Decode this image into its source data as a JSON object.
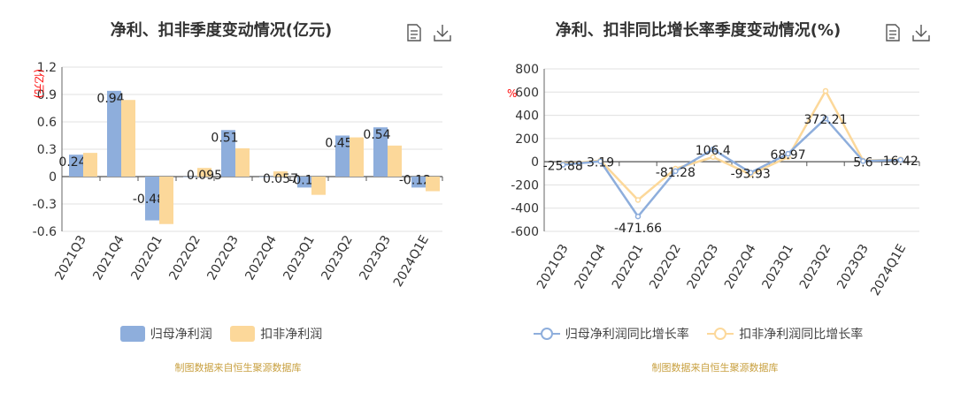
{
  "source_note": "制图数据来自恒生聚源数据库",
  "colors": {
    "series1": "#8eaedc",
    "series2": "#fcd89a",
    "axis": "#666666",
    "grid": "#e0e0e0",
    "unit": "#ff0000"
  },
  "icons": [
    "document-icon",
    "download-icon"
  ],
  "chart_data": [
    {
      "type": "bar",
      "title": "净利、扣非季度变动情况(亿元)",
      "ylabel": "(亿元)",
      "categories": [
        "2021Q3",
        "2021Q4",
        "2022Q1",
        "2022Q2",
        "2022Q3",
        "2022Q4",
        "2023Q1",
        "2023Q2",
        "2023Q3",
        "2024Q1E"
      ],
      "ylim": [
        -0.6,
        1.2
      ],
      "yticks": [
        "1.2",
        "0.9",
        "0.6",
        "0.3",
        "0",
        "-0.3",
        "-0.6"
      ],
      "legend": "bottom",
      "series": [
        {
          "name": "归母净利润",
          "values": [
            0.24,
            0.94,
            -0.48,
            0.0,
            0.51,
            0.0,
            -0.12,
            0.45,
            0.54,
            -0.12
          ],
          "labels": [
            "0.24",
            "0.94",
            "-0.48",
            "",
            "0.51",
            "",
            "-0.1",
            "0.45",
            "0.54",
            "-0.12"
          ]
        },
        {
          "name": "扣非净利润",
          "values": [
            0.26,
            0.84,
            -0.52,
            0.095,
            0.31,
            0.057,
            -0.2,
            0.43,
            0.34,
            -0.16
          ],
          "labels": [
            "",
            "",
            "",
            "0.095",
            "",
            "0.057",
            "",
            "",
            "",
            ""
          ]
        }
      ]
    },
    {
      "type": "line",
      "title": "净利、扣非同比增长率季度变动情况(%)",
      "ylabel": "%",
      "categories": [
        "2021Q3",
        "2021Q4",
        "2022Q1",
        "2022Q2",
        "2022Q3",
        "2022Q4",
        "2023Q1",
        "2023Q2",
        "2023Q3",
        "2024Q1E"
      ],
      "ylim": [
        -600,
        800
      ],
      "yticks": [
        "800",
        "600",
        "400",
        "200",
        "0",
        "-200",
        "-400",
        "-600"
      ],
      "legend": "bottom",
      "series": [
        {
          "name": "归母净利润同比增长率",
          "values": [
            -25.88,
            3.19,
            -471.66,
            -81.28,
            106.4,
            -93.93,
            68.97,
            372.21,
            5.6,
            16.42
          ],
          "labels": [
            "-25.88",
            "3.19",
            "-471.66",
            "-81.28",
            "106.4",
            "-93.93",
            "68.97",
            "372.21",
            "5.6",
            "16.42"
          ]
        },
        {
          "name": "扣非净利润同比增长率",
          "values": [
            -20,
            10,
            -330,
            -60,
            40,
            -110,
            40,
            610,
            10,
            20
          ],
          "labels": [
            "",
            "",
            "",
            "",
            "",
            "",
            "",
            "",
            "",
            ""
          ]
        }
      ]
    }
  ]
}
